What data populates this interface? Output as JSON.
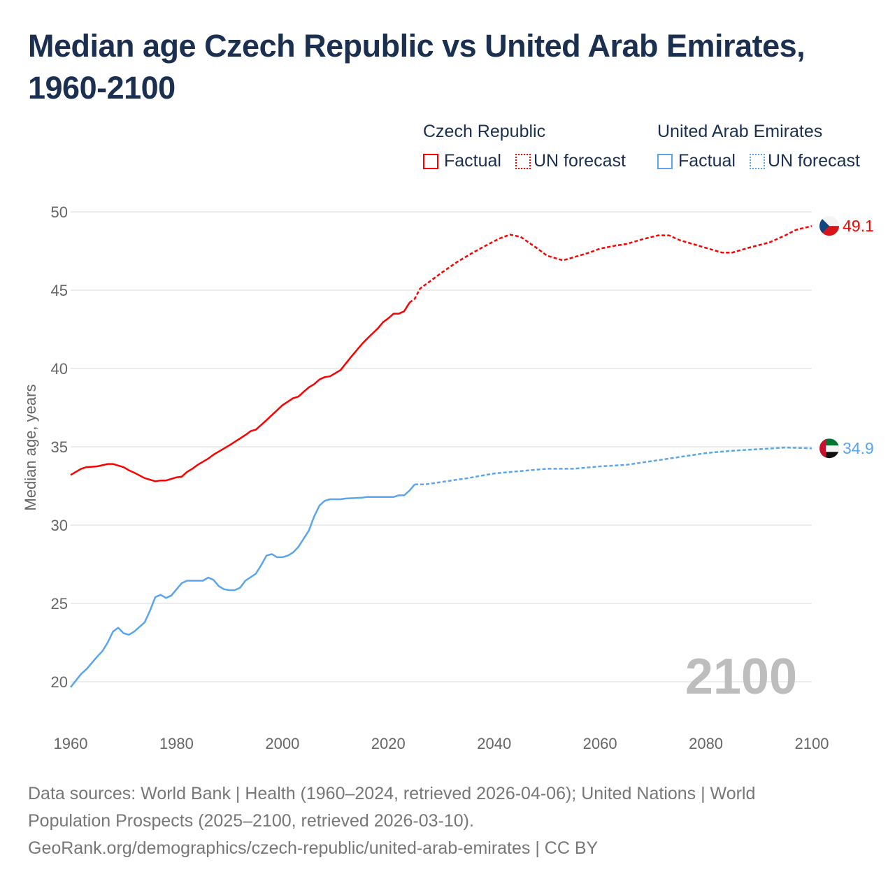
{
  "title": "Median age Czech Republic vs United Arab Emirates, 1960-2100",
  "legend": {
    "groups": [
      {
        "name": "Czech Republic",
        "factual": "Factual",
        "forecast": "UN forecast",
        "color": "#ff0000"
      },
      {
        "name": "United Arab Emirates",
        "factual": "Factual",
        "forecast": "UN forecast",
        "color": "#5aa5ee"
      }
    ]
  },
  "year_watermark": "2100",
  "footer": {
    "line1": "Data sources: World Bank | Health (1960–2024, retrieved 2026-04-06); United Nations | World",
    "line2": "Population Prospects (2025–2100, retrieved 2026-03-10).",
    "line3": "GeoRank.org/demographics/czech-republic/united-arab-emirates | CC BY"
  },
  "chart_data": {
    "type": "line",
    "title": "Median age Czech Republic vs United Arab Emirates, 1960-2100",
    "xlabel": "",
    "ylabel": "Median age, years",
    "xlim": [
      1960,
      2100
    ],
    "ylim": [
      18,
      51
    ],
    "x_ticks": [
      "1960",
      "1980",
      "2000",
      "2020",
      "2040",
      "2060",
      "2080",
      "2100"
    ],
    "y_ticks": [
      "20",
      "25",
      "30",
      "35",
      "40",
      "45",
      "50"
    ],
    "grid": true,
    "legend_position": "top-right",
    "series": [
      {
        "name": "Czech Republic",
        "color": "#ff0000",
        "end_label": "49.1",
        "factual": [
          [
            1960,
            33.2
          ],
          [
            1962,
            33.6
          ],
          [
            1963,
            33.7
          ],
          [
            1965,
            33.75
          ],
          [
            1967,
            33.9
          ],
          [
            1968,
            33.9
          ],
          [
            1970,
            33.7
          ],
          [
            1971,
            33.5
          ],
          [
            1972,
            33.35
          ],
          [
            1974,
            33.0
          ],
          [
            1976,
            32.8
          ],
          [
            1977,
            32.85
          ],
          [
            1978,
            32.85
          ],
          [
            1980,
            33.05
          ],
          [
            1981,
            33.1
          ],
          [
            1982,
            33.4
          ],
          [
            1983,
            33.6
          ],
          [
            1984,
            33.85
          ],
          [
            1986,
            34.25
          ],
          [
            1987,
            34.5
          ],
          [
            1990,
            35.1
          ],
          [
            1993,
            35.75
          ],
          [
            1994,
            36.0
          ],
          [
            1995,
            36.1
          ],
          [
            1997,
            36.7
          ],
          [
            2000,
            37.65
          ],
          [
            2002,
            38.1
          ],
          [
            2003,
            38.2
          ],
          [
            2004,
            38.5
          ],
          [
            2005,
            38.8
          ],
          [
            2006,
            39.0
          ],
          [
            2007,
            39.3
          ],
          [
            2008,
            39.45
          ],
          [
            2009,
            39.5
          ],
          [
            2010,
            39.7
          ],
          [
            2011,
            39.9
          ],
          [
            2013,
            40.75
          ],
          [
            2015,
            41.55
          ],
          [
            2016,
            41.9
          ],
          [
            2018,
            42.55
          ],
          [
            2019,
            42.95
          ],
          [
            2020,
            43.2
          ],
          [
            2021,
            43.5
          ],
          [
            2022,
            43.5
          ],
          [
            2023,
            43.65
          ],
          [
            2024,
            44.2
          ]
        ],
        "forecast": [
          [
            2024,
            44.2
          ],
          [
            2025,
            44.45
          ],
          [
            2026,
            45.1
          ],
          [
            2030,
            46.1
          ],
          [
            2033,
            46.8
          ],
          [
            2036,
            47.4
          ],
          [
            2039,
            47.95
          ],
          [
            2041,
            48.3
          ],
          [
            2043,
            48.55
          ],
          [
            2045,
            48.4
          ],
          [
            2048,
            47.7
          ],
          [
            2050,
            47.2
          ],
          [
            2053,
            46.9
          ],
          [
            2055,
            47.1
          ],
          [
            2058,
            47.4
          ],
          [
            2060,
            47.65
          ],
          [
            2063,
            47.85
          ],
          [
            2065,
            47.95
          ],
          [
            2068,
            48.25
          ],
          [
            2071,
            48.5
          ],
          [
            2073,
            48.5
          ],
          [
            2075,
            48.2
          ],
          [
            2078,
            47.9
          ],
          [
            2080,
            47.7
          ],
          [
            2083,
            47.4
          ],
          [
            2085,
            47.4
          ],
          [
            2088,
            47.7
          ],
          [
            2092,
            48.05
          ],
          [
            2095,
            48.5
          ],
          [
            2097,
            48.85
          ],
          [
            2100,
            49.1
          ]
        ]
      },
      {
        "name": "United Arab Emirates",
        "color": "#5aa5ee",
        "end_label": "34.9",
        "factual": [
          [
            1960,
            19.65
          ],
          [
            1962,
            20.5
          ],
          [
            1963,
            20.8
          ],
          [
            1965,
            21.6
          ],
          [
            1966,
            21.95
          ],
          [
            1967,
            22.5
          ],
          [
            1968,
            23.2
          ],
          [
            1969,
            23.45
          ],
          [
            1970,
            23.1
          ],
          [
            1971,
            23.0
          ],
          [
            1972,
            23.2
          ],
          [
            1974,
            23.8
          ],
          [
            1975,
            24.55
          ],
          [
            1976,
            25.4
          ],
          [
            1977,
            25.55
          ],
          [
            1978,
            25.35
          ],
          [
            1979,
            25.5
          ],
          [
            1981,
            26.3
          ],
          [
            1982,
            26.45
          ],
          [
            1985,
            26.45
          ],
          [
            1986,
            26.65
          ],
          [
            1987,
            26.5
          ],
          [
            1988,
            26.1
          ],
          [
            1989,
            25.9
          ],
          [
            1990,
            25.85
          ],
          [
            1991,
            25.85
          ],
          [
            1992,
            26.0
          ],
          [
            1993,
            26.45
          ],
          [
            1995,
            26.9
          ],
          [
            1996,
            27.45
          ],
          [
            1997,
            28.05
          ],
          [
            1998,
            28.15
          ],
          [
            1999,
            27.95
          ],
          [
            2000,
            27.95
          ],
          [
            2001,
            28.05
          ],
          [
            2002,
            28.25
          ],
          [
            2003,
            28.6
          ],
          [
            2005,
            29.65
          ],
          [
            2006,
            30.55
          ],
          [
            2007,
            31.25
          ],
          [
            2008,
            31.55
          ],
          [
            2009,
            31.65
          ],
          [
            2011,
            31.65
          ],
          [
            2012,
            31.7
          ],
          [
            2015,
            31.75
          ],
          [
            2016,
            31.8
          ],
          [
            2021,
            31.8
          ],
          [
            2022,
            31.9
          ],
          [
            2023,
            31.9
          ],
          [
            2024,
            32.2
          ],
          [
            2025,
            32.6
          ]
        ],
        "forecast": [
          [
            2025,
            32.6
          ],
          [
            2027,
            32.6
          ],
          [
            2030,
            32.75
          ],
          [
            2035,
            33.0
          ],
          [
            2040,
            33.3
          ],
          [
            2045,
            33.45
          ],
          [
            2050,
            33.6
          ],
          [
            2055,
            33.6
          ],
          [
            2060,
            33.75
          ],
          [
            2065,
            33.85
          ],
          [
            2070,
            34.1
          ],
          [
            2075,
            34.35
          ],
          [
            2080,
            34.6
          ],
          [
            2085,
            34.75
          ],
          [
            2090,
            34.85
          ],
          [
            2095,
            34.95
          ],
          [
            2100,
            34.9
          ]
        ]
      }
    ]
  }
}
